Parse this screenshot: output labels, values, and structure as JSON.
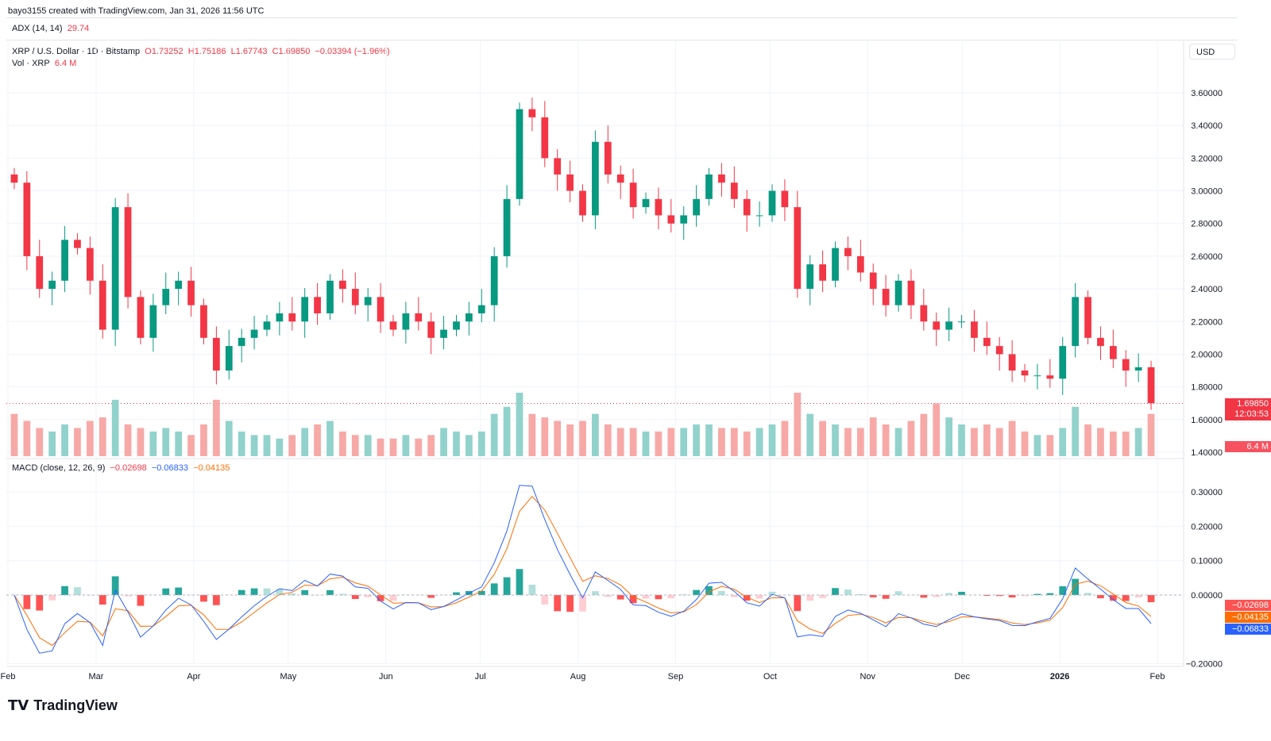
{
  "credit": "bayo3155 created with TradingView.com, Jan 31, 2026 11:56 UTC",
  "adx": {
    "label": "ADX (14, 14)",
    "value": "29.74"
  },
  "symbol": {
    "name": "XRP / U.S. Dollar · 1D · Bitstamp",
    "o": "O1.73252",
    "h": "H1.75186",
    "l": "L1.67743",
    "c": "C1.69850",
    "chg": "−0.03394 (−1.96%)"
  },
  "volume": {
    "label": "Vol · XRP",
    "value": "6.4 M"
  },
  "macd": {
    "label": "MACD (close, 12, 26, 9)",
    "hist": "−0.02698",
    "macd": "−0.06833",
    "signal": "−0.04135"
  },
  "currency": "USD",
  "last_price": {
    "price": "1.69850",
    "countdown": "12:03:53",
    "vol": "6.4 M"
  },
  "brand": "TradingView",
  "colors": {
    "up": "#089981",
    "down": "#f23645",
    "macd": "#2962ff",
    "signal": "#ff6d00"
  },
  "chart_data": {
    "type": "candlestick",
    "price_ticks": [
      "3.60000",
      "3.40000",
      "3.20000",
      "3.00000",
      "2.80000",
      "2.60000",
      "2.40000",
      "2.20000",
      "2.00000",
      "1.80000",
      "1.60000",
      "1.40000"
    ],
    "macd_ticks": [
      "0.30000",
      "0.20000",
      "0.10000",
      "0.00000",
      "−0.20000"
    ],
    "ylim": [
      1.4,
      3.6
    ],
    "x_labels": [
      {
        "t": "Feb",
        "day": 0
      },
      {
        "t": "Mar",
        "day": 28
      },
      {
        "t": "Apr",
        "day": 59
      },
      {
        "t": "May",
        "day": 89
      },
      {
        "t": "Jun",
        "day": 120
      },
      {
        "t": "Jul",
        "day": 150
      },
      {
        "t": "Aug",
        "day": 181
      },
      {
        "t": "Sep",
        "day": 212
      },
      {
        "t": "Oct",
        "day": 242
      },
      {
        "t": "Nov",
        "day": 273
      },
      {
        "t": "Dec",
        "day": 303
      },
      {
        "t": "2026",
        "day": 334
      },
      {
        "t": "Feb",
        "day": 365
      }
    ],
    "step_days": 4,
    "closes": [
      3.05,
      2.6,
      2.4,
      2.45,
      2.7,
      2.65,
      2.45,
      2.15,
      2.9,
      2.35,
      2.1,
      2.3,
      2.4,
      2.45,
      2.3,
      2.1,
      1.9,
      2.05,
      2.1,
      2.15,
      2.2,
      2.25,
      2.2,
      2.35,
      2.25,
      2.45,
      2.4,
      2.3,
      2.35,
      2.2,
      2.15,
      2.25,
      2.2,
      2.1,
      2.15,
      2.2,
      2.25,
      2.3,
      2.6,
      2.95,
      3.5,
      3.45,
      3.2,
      3.1,
      3.0,
      2.85,
      3.3,
      3.1,
      3.05,
      2.9,
      2.95,
      2.85,
      2.8,
      2.85,
      2.95,
      3.1,
      3.05,
      2.95,
      2.85,
      2.85,
      3.0,
      2.9,
      2.4,
      2.55,
      2.45,
      2.65,
      2.6,
      2.5,
      2.4,
      2.3,
      2.45,
      2.3,
      2.2,
      2.15,
      2.2,
      2.2,
      2.1,
      2.05,
      2.0,
      1.9,
      1.87,
      1.87,
      1.85,
      2.05,
      2.35,
      2.1,
      2.05,
      1.97,
      1.9,
      1.92,
      1.7
    ],
    "volumes": [
      60,
      50,
      40,
      35,
      45,
      40,
      50,
      55,
      80,
      45,
      40,
      35,
      40,
      35,
      30,
      45,
      80,
      50,
      35,
      30,
      30,
      25,
      30,
      40,
      45,
      50,
      35,
      30,
      30,
      25,
      25,
      30,
      25,
      30,
      40,
      35,
      30,
      35,
      60,
      70,
      90,
      60,
      55,
      50,
      45,
      50,
      60,
      45,
      40,
      40,
      35,
      35,
      40,
      40,
      45,
      45,
      40,
      40,
      35,
      40,
      45,
      50,
      90,
      60,
      50,
      45,
      40,
      40,
      55,
      45,
      40,
      50,
      60,
      75,
      55,
      45,
      40,
      45,
      40,
      50,
      35,
      30,
      30,
      40,
      70,
      45,
      40,
      35,
      35,
      40,
      60
    ]
  }
}
